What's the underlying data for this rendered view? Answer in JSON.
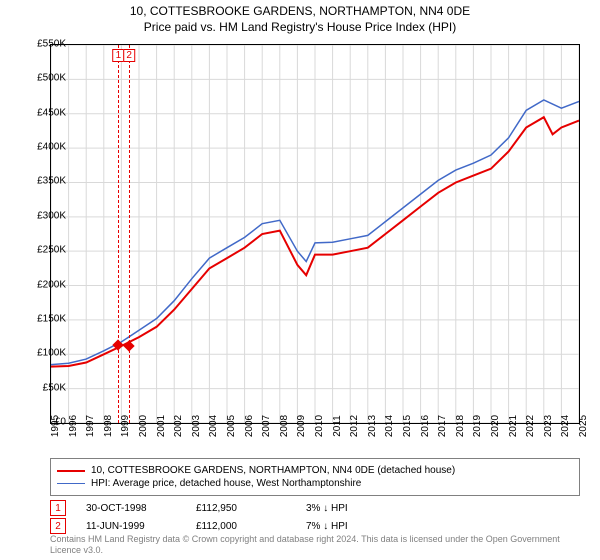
{
  "title": "10, COTTESBROOKE GARDENS, NORTHAMPTON, NN4 0DE",
  "subtitle": "Price paid vs. HM Land Registry's House Price Index (HPI)",
  "chart": {
    "type": "line",
    "background_color": "#ffffff",
    "border_color": "#000000",
    "grid_color": "#d9d9d9",
    "label_fontsize": 10,
    "title_fontsize": 12,
    "x_axis": {
      "min": 1995,
      "max": 2025,
      "tick_step": 1,
      "ticks": [
        1995,
        1996,
        1997,
        1998,
        1999,
        2000,
        2001,
        2002,
        2003,
        2004,
        2005,
        2006,
        2007,
        2008,
        2009,
        2010,
        2011,
        2012,
        2013,
        2014,
        2015,
        2016,
        2017,
        2018,
        2019,
        2020,
        2021,
        2022,
        2023,
        2024,
        2025
      ],
      "tick_rotation": -90
    },
    "y_axis": {
      "min": 0,
      "max": 550000,
      "tick_step": 50000,
      "tick_labels": [
        "£0",
        "£50K",
        "£100K",
        "£150K",
        "£200K",
        "£250K",
        "£300K",
        "£350K",
        "£400K",
        "£450K",
        "£500K",
        "£550K"
      ]
    },
    "series": [
      {
        "name": "10, COTTESBROOKE GARDENS, NORTHAMPTON, NN4 0DE (detached house)",
        "color": "#e60000",
        "line_width": 2,
        "x": [
          1995,
          1996,
          1997,
          1998,
          1999,
          2000,
          2001,
          2002,
          2003,
          2004,
          2005,
          2006,
          2007,
          2008,
          2009,
          2009.5,
          2010,
          2011,
          2012,
          2013,
          2014,
          2015,
          2016,
          2017,
          2018,
          2019,
          2020,
          2021,
          2022,
          2023,
          2023.5,
          2024,
          2025
        ],
        "y": [
          82000,
          83000,
          88000,
          100000,
          112000,
          125000,
          140000,
          165000,
          195000,
          225000,
          240000,
          255000,
          275000,
          280000,
          230000,
          215000,
          245000,
          245000,
          250000,
          255000,
          275000,
          295000,
          315000,
          335000,
          350000,
          360000,
          370000,
          395000,
          430000,
          445000,
          420000,
          430000,
          440000
        ]
      },
      {
        "name": "HPI: Average price, detached house, West Northamptonshire",
        "color": "#4169c8",
        "line_width": 1.5,
        "x": [
          1995,
          1996,
          1997,
          1998,
          1999,
          2000,
          2001,
          2002,
          2003,
          2004,
          2005,
          2006,
          2007,
          2008,
          2009,
          2009.5,
          2010,
          2011,
          2012,
          2013,
          2014,
          2015,
          2016,
          2017,
          2018,
          2019,
          2020,
          2021,
          2022,
          2023,
          2024,
          2025
        ],
        "y": [
          85000,
          87000,
          93000,
          105000,
          118000,
          135000,
          152000,
          178000,
          210000,
          240000,
          255000,
          270000,
          290000,
          295000,
          250000,
          235000,
          262000,
          263000,
          268000,
          273000,
          293000,
          313000,
          333000,
          353000,
          368000,
          378000,
          390000,
          415000,
          455000,
          470000,
          458000,
          468000
        ]
      }
    ],
    "events": [
      {
        "label": "1",
        "date": 1998.83,
        "y": 112950
      },
      {
        "label": "2",
        "date": 1999.44,
        "y": 112000
      }
    ]
  },
  "legend": {
    "border_color": "#808080",
    "items": [
      {
        "color": "#e60000",
        "label": "10, COTTESBROOKE GARDENS, NORTHAMPTON, NN4 0DE (detached house)"
      },
      {
        "color": "#4169c8",
        "label": "HPI: Average price, detached house, West Northamptonshire"
      }
    ]
  },
  "sales": [
    {
      "marker": "1",
      "date": "30-OCT-1998",
      "price": "£112,950",
      "delta": "3% ↓ HPI"
    },
    {
      "marker": "2",
      "date": "11-JUN-1999",
      "price": "£112,000",
      "delta": "7% ↓ HPI"
    }
  ],
  "attribution": "Contains HM Land Registry data © Crown copyright and database right 2024. This data is licensed under the Open Government Licence v3.0."
}
